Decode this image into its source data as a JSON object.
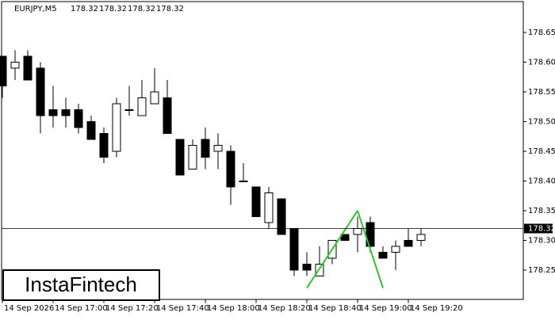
{
  "chart_data": {
    "type": "candlestick",
    "symbol": "EURJPY,M5",
    "header_ohlc": [
      178.32,
      178.32,
      178.32,
      178.32
    ],
    "categories": [
      "14 Sep 2026",
      null,
      null,
      null,
      "14 Sep 17:00",
      null,
      null,
      null,
      "14 Sep 17:20",
      null,
      null,
      null,
      "14 Sep 17:40",
      null,
      null,
      null,
      "14 Sep 18:00",
      null,
      null,
      null,
      "14 Sep 18:20",
      null,
      null,
      null,
      "14 Sep 18:40",
      null,
      null,
      null,
      "14 Sep 19:00",
      null,
      null,
      null,
      "14 Sep 19:20",
      null
    ],
    "open": [
      178.61,
      178.59,
      178.61,
      178.59,
      178.52,
      178.52,
      178.52,
      178.5,
      178.48,
      178.45,
      178.52,
      178.51,
      178.53,
      178.54,
      178.47,
      178.42,
      178.47,
      178.45,
      178.45,
      178.4,
      178.39,
      178.33,
      178.37,
      178.32,
      178.26,
      178.24,
      178.27,
      178.31,
      178.31,
      178.33,
      178.28,
      178.28,
      178.3,
      178.3
    ],
    "high": [
      178.61,
      178.62,
      178.62,
      178.6,
      178.56,
      178.54,
      178.53,
      178.51,
      178.49,
      178.54,
      178.56,
      178.57,
      178.59,
      178.57,
      178.47,
      178.47,
      178.49,
      178.48,
      178.46,
      178.43,
      178.39,
      178.39,
      178.37,
      178.32,
      178.28,
      178.29,
      178.3,
      178.31,
      178.34,
      178.34,
      178.29,
      178.3,
      178.32,
      178.32
    ],
    "low": [
      178.54,
      178.57,
      178.57,
      178.48,
      178.49,
      178.49,
      178.48,
      178.47,
      178.43,
      178.44,
      178.51,
      178.51,
      178.53,
      178.48,
      178.41,
      178.42,
      178.42,
      178.42,
      178.36,
      178.4,
      178.34,
      178.32,
      178.31,
      178.24,
      178.24,
      178.24,
      178.26,
      178.3,
      178.28,
      178.28,
      178.27,
      178.25,
      178.29,
      178.29
    ],
    "close": [
      178.56,
      178.6,
      178.57,
      178.51,
      178.51,
      178.51,
      178.49,
      178.47,
      178.44,
      178.53,
      178.52,
      178.54,
      178.55,
      178.48,
      178.41,
      178.46,
      178.44,
      178.46,
      178.39,
      178.4,
      178.34,
      178.38,
      178.31,
      178.25,
      178.25,
      178.26,
      178.3,
      178.3,
      178.32,
      178.29,
      178.27,
      178.29,
      178.29,
      178.31
    ],
    "pattern": {
      "color": "#22cc22",
      "values": [
        null,
        null,
        null,
        null,
        null,
        null,
        null,
        null,
        null,
        null,
        null,
        null,
        null,
        null,
        null,
        null,
        null,
        null,
        null,
        null,
        null,
        null,
        null,
        null,
        178.22,
        null,
        null,
        null,
        178.35,
        null,
        178.22,
        null,
        null,
        null
      ]
    },
    "current_price": 178.32,
    "ylim": [
      178.2,
      178.7
    ],
    "yticks": [
      178.25,
      {
        "value": 178.3,
        "label": "178.30"
      },
      178.35,
      {
        "value": 178.4,
        "label": "178.40"
      },
      178.45,
      {
        "value": 178.5,
        "label": "178.50"
      },
      178.55,
      {
        "value": 178.6,
        "label": "178.60"
      },
      178.65
    ],
    "logo": "InstaFintech"
  }
}
